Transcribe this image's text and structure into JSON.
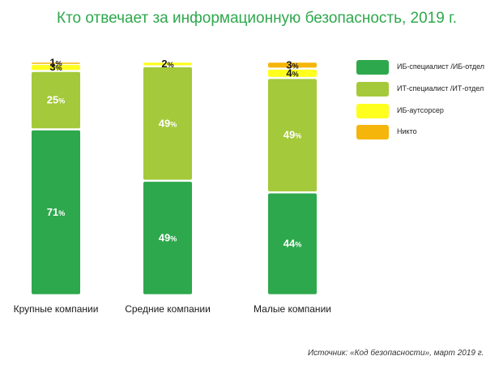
{
  "title": "Кто отвечает за информационную безопасность, 2019 г.",
  "source": "Источник: «Код безопасности», март 2019 г.",
  "chart_data": {
    "type": "bar",
    "stacked": true,
    "orientation": "vertical",
    "categories": [
      "Крупные компании",
      "Средние компании",
      "Малые компании"
    ],
    "series": [
      {
        "name": "ИБ-специалист /ИБ-отдел",
        "color": "#2ea84c",
        "values": [
          71,
          49,
          44
        ]
      },
      {
        "name": "ИТ-специалист /ИТ-отдел",
        "color": "#a4c93a",
        "values": [
          25,
          49,
          49
        ]
      },
      {
        "name": "ИБ-аутсорсер",
        "color": "#ffff1e",
        "values": [
          3,
          2,
          4
        ]
      },
      {
        "name": "Никто",
        "color": "#f5b50a",
        "values": [
          1,
          0,
          3
        ]
      }
    ],
    "value_suffix": "%",
    "ylim": [
      0,
      100
    ],
    "legend_position": "right",
    "grid": false
  }
}
